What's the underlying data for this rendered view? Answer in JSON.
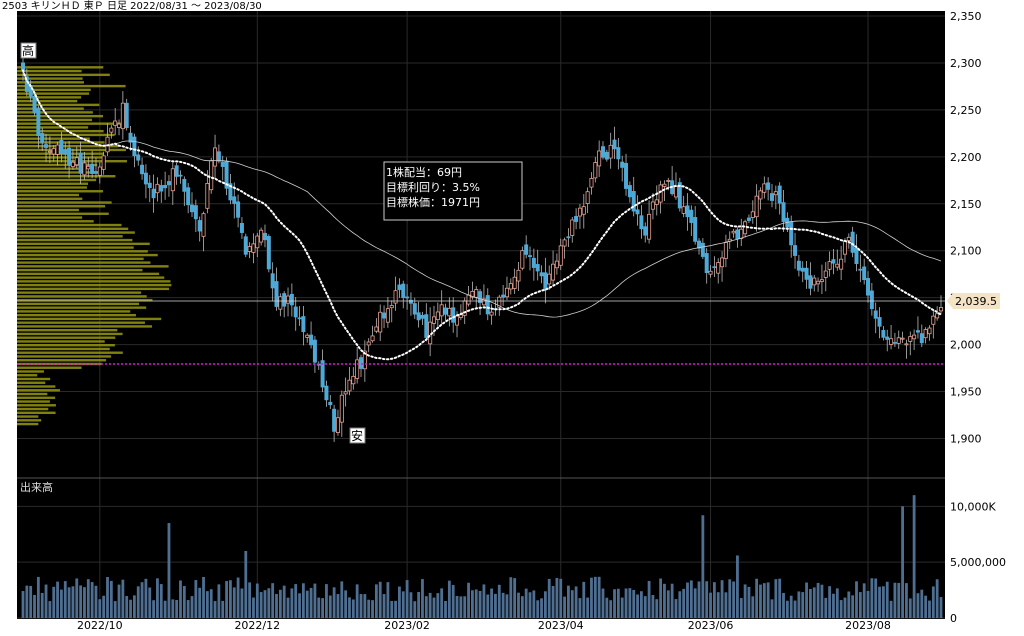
{
  "header": {
    "title": "2503 キリンＨＤ 東Ｐ 日足 2022/08/31 〜 2023/08/30"
  },
  "colors": {
    "background": "#000000",
    "up_candle": "#e8a090",
    "down_candle": "#4ea9d6",
    "volume_bar": "#4f6f92",
    "volume_profile": "#8f8f12",
    "ma_short": "#ffffff",
    "ma_long": "#cfcfcf",
    "target_line": "#d21ed2",
    "last_price_bg": "#f5e3c6",
    "grid": "#2a2a2a"
  },
  "markers": {
    "high": "高",
    "low": "安"
  },
  "info_box": {
    "line1": "1株配当：69円",
    "line2": "目標利回り：3.5%",
    "line3": "目標株価：1971円"
  },
  "last_price": {
    "label": "2,039.5",
    "value": 2039.5
  },
  "target_price": 1971,
  "chart_data": [
    {
      "type": "candlestick",
      "title": "2503 キリンＨＤ 東Ｐ 日足 2022/08/31 〜 2023/08/30",
      "x_tick_labels": [
        "2022/10",
        "2022/12",
        "2023/02",
        "2023/04",
        "2023/06",
        "2023/08"
      ],
      "y_tick_labels": [
        "2,350",
        "2,300",
        "2,250",
        "2,200",
        "2,150",
        "2,100",
        "2,050",
        "2,000",
        "1,950",
        "1,900"
      ],
      "ylim": [
        1860,
        2350
      ],
      "price_anchors": [
        {
          "day": 0,
          "close": 2285
        },
        {
          "day": 5,
          "close": 2215
        },
        {
          "day": 12,
          "close": 2195
        },
        {
          "day": 18,
          "close": 2180
        },
        {
          "day": 26,
          "close": 2250
        },
        {
          "day": 30,
          "close": 2190
        },
        {
          "day": 34,
          "close": 2160
        },
        {
          "day": 40,
          "close": 2185
        },
        {
          "day": 46,
          "close": 2125
        },
        {
          "day": 50,
          "close": 2215
        },
        {
          "day": 54,
          "close": 2160
        },
        {
          "day": 58,
          "close": 2095
        },
        {
          "day": 62,
          "close": 2125
        },
        {
          "day": 66,
          "close": 2040
        },
        {
          "day": 70,
          "close": 2050
        },
        {
          "day": 73,
          "close": 2010
        },
        {
          "day": 77,
          "close": 1975
        },
        {
          "day": 81,
          "close": 1915
        },
        {
          "day": 85,
          "close": 1960
        },
        {
          "day": 89,
          "close": 1990
        },
        {
          "day": 93,
          "close": 2030
        },
        {
          "day": 98,
          "close": 2060
        },
        {
          "day": 101,
          "close": 2045
        },
        {
          "day": 105,
          "close": 2015
        },
        {
          "day": 109,
          "close": 2035
        },
        {
          "day": 113,
          "close": 2030
        },
        {
          "day": 118,
          "close": 2055
        },
        {
          "day": 122,
          "close": 2035
        },
        {
          "day": 126,
          "close": 2060
        },
        {
          "day": 131,
          "close": 2100
        },
        {
          "day": 136,
          "close": 2065
        },
        {
          "day": 141,
          "close": 2110
        },
        {
          "day": 146,
          "close": 2145
        },
        {
          "day": 150,
          "close": 2200
        },
        {
          "day": 154,
          "close": 2210
        },
        {
          "day": 158,
          "close": 2160
        },
        {
          "day": 162,
          "close": 2120
        },
        {
          "day": 166,
          "close": 2175
        },
        {
          "day": 170,
          "close": 2160
        },
        {
          "day": 175,
          "close": 2115
        },
        {
          "day": 179,
          "close": 2075
        },
        {
          "day": 183,
          "close": 2105
        },
        {
          "day": 188,
          "close": 2130
        },
        {
          "day": 192,
          "close": 2170
        },
        {
          "day": 197,
          "close": 2150
        },
        {
          "day": 201,
          "close": 2090
        },
        {
          "day": 205,
          "close": 2060
        },
        {
          "day": 210,
          "close": 2080
        },
        {
          "day": 215,
          "close": 2110
        },
        {
          "day": 218,
          "close": 2080
        },
        {
          "day": 221,
          "close": 2040
        },
        {
          "day": 224,
          "close": 2005
        },
        {
          "day": 228,
          "close": 2000
        },
        {
          "day": 232,
          "close": 2005
        },
        {
          "day": 236,
          "close": 2015
        },
        {
          "day": 239,
          "close": 2039.5
        }
      ],
      "volume_ylim": [
        0,
        12000000
      ],
      "volume_tick_labels": [
        "10,000K",
        "5,000,000",
        "0"
      ],
      "volume_label": "出来高",
      "volume_spikes": [
        {
          "day": 38,
          "value": 8500000
        },
        {
          "day": 58,
          "value": 6000000
        },
        {
          "day": 177,
          "value": 9200000
        },
        {
          "day": 186,
          "value": 5600000
        },
        {
          "day": 229,
          "value": 10000000
        },
        {
          "day": 232,
          "value": 11000000
        }
      ]
    }
  ]
}
